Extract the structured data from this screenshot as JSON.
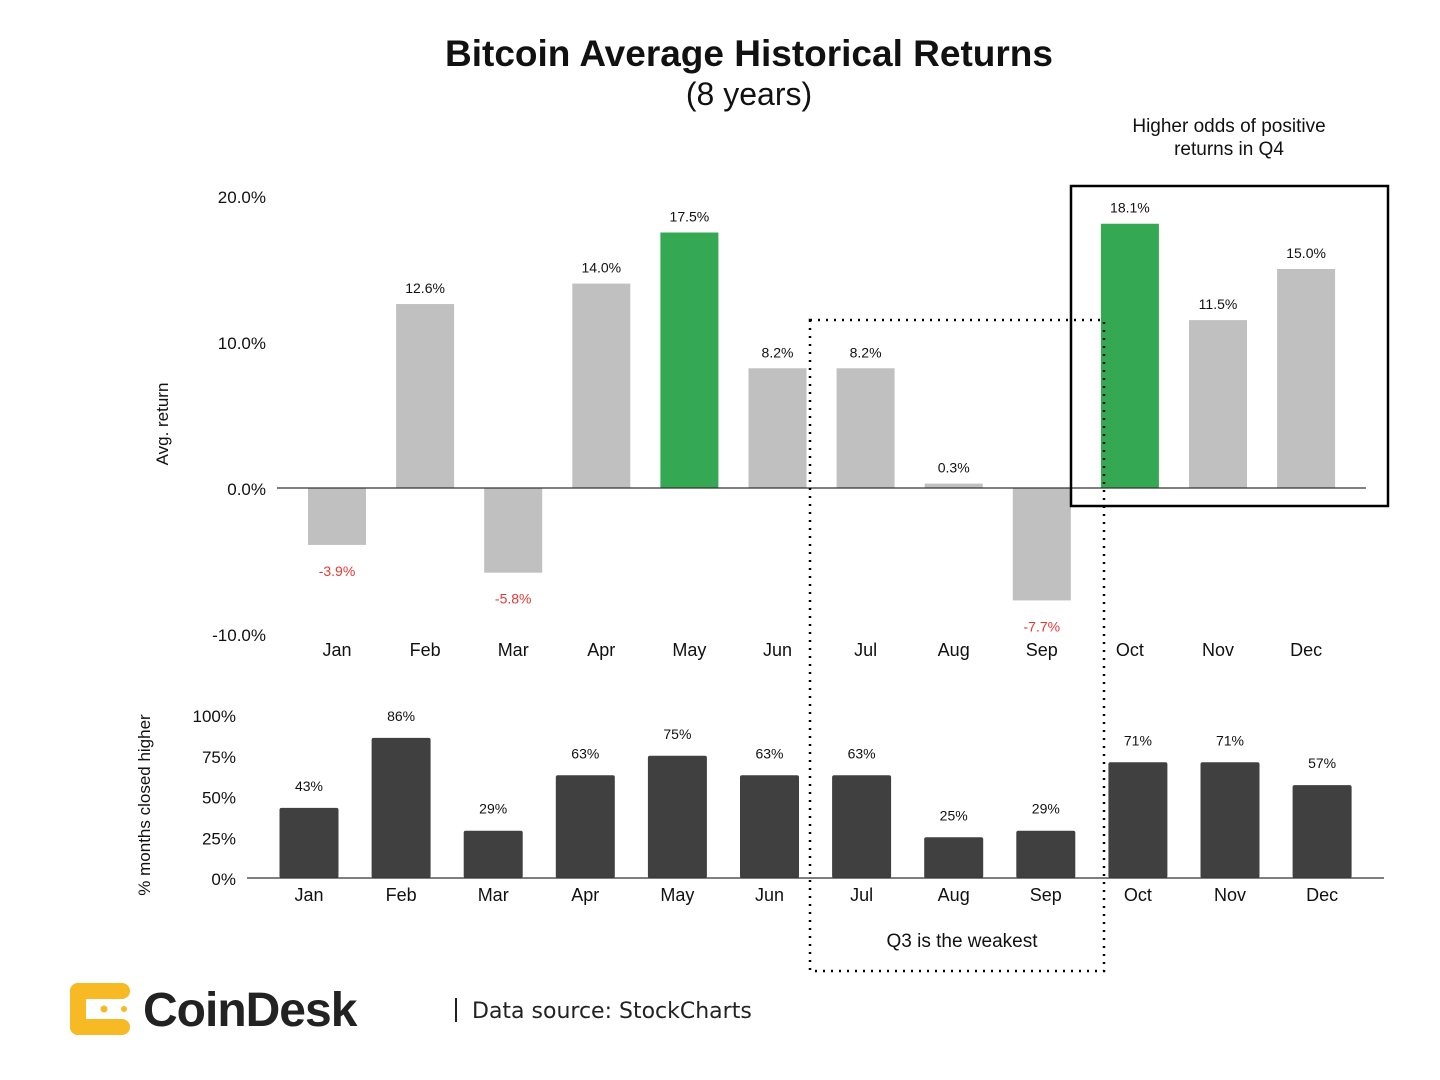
{
  "chart_data": [
    {
      "type": "bar",
      "title": "Bitcoin Average Historical Returns",
      "subtitle": "(8 years)",
      "ylabel": "Avg. return",
      "xlabel": "",
      "ylim": [
        -10,
        20
      ],
      "yticks": [
        "20.0%",
        "10.0%",
        "0.0%",
        "-10.0%"
      ],
      "ytick_values": [
        20,
        10,
        0,
        -10
      ],
      "categories": [
        "Jan",
        "Feb",
        "Mar",
        "Apr",
        "May",
        "Jun",
        "Jul",
        "Aug",
        "Sep",
        "Oct",
        "Nov",
        "Dec"
      ],
      "values": [
        -3.9,
        12.6,
        -5.8,
        14.0,
        17.5,
        8.2,
        8.2,
        0.3,
        -7.7,
        18.1,
        11.5,
        15.0
      ],
      "labels": [
        "-3.9%",
        "12.6%",
        "-5.8%",
        "14.0%",
        "17.5%",
        "8.2%",
        "8.2%",
        "0.3%",
        "-7.7%",
        "18.1%",
        "11.5%",
        "15.0%"
      ],
      "highlighted": [
        "May",
        "Oct"
      ],
      "grid": false
    },
    {
      "type": "bar",
      "ylabel": "% months closed higher",
      "xlabel": "",
      "ylim": [
        0,
        100
      ],
      "yticks": [
        "100%",
        "75%",
        "50%",
        "25%",
        "0%"
      ],
      "ytick_values": [
        100,
        75,
        50,
        25,
        0
      ],
      "categories": [
        "Jan",
        "Feb",
        "Mar",
        "Apr",
        "May",
        "Jun",
        "Jul",
        "Aug",
        "Sep",
        "Oct",
        "Nov",
        "Dec"
      ],
      "values": [
        43,
        86,
        29,
        63,
        75,
        63,
        63,
        25,
        29,
        71,
        71,
        57
      ],
      "labels": [
        "43%",
        "86%",
        "29%",
        "63%",
        "75%",
        "63%",
        "63%",
        "25%",
        "29%",
        "71%",
        "71%",
        "57%"
      ],
      "grid": false
    }
  ],
  "annotations": {
    "q4": "Higher odds of positive returns in Q4",
    "q4_line1": "Higher odds of positive",
    "q4_line2": "returns in Q4",
    "q3": "Q3 is the weakest"
  },
  "footer": {
    "brand": "CoinDesk",
    "source": "Data source: StockCharts"
  },
  "colors": {
    "positive_bar": "#c0c0c0",
    "highlight_bar": "#34a853",
    "negative_label": "#e53935",
    "bottom_bar": "#404040",
    "logo": "#f7b924"
  }
}
